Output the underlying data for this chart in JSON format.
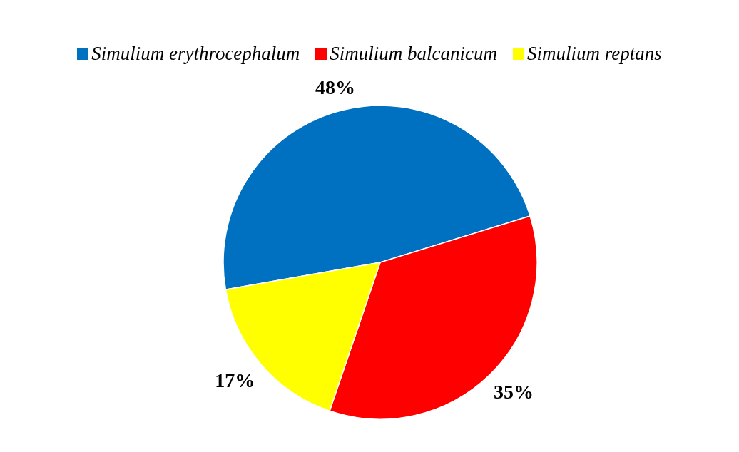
{
  "chart_data": {
    "type": "pie",
    "categories": [
      "Simulium erythrocephalum",
      "Simulium balcanicum",
      "Simulium reptans"
    ],
    "values": [
      48,
      35,
      17
    ],
    "value_labels": [
      "48%",
      "35%",
      "17%"
    ],
    "colors": [
      "#0070c0",
      "#ff0000",
      "#ffff00"
    ],
    "legend": "top"
  }
}
